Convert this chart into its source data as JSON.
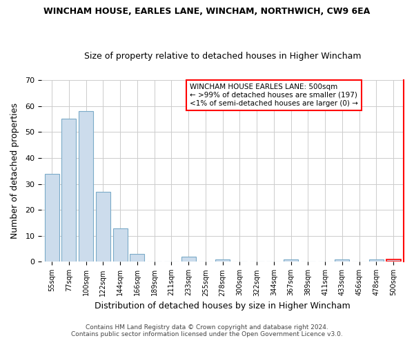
{
  "title": "WINCHAM HOUSE, EARLES LANE, WINCHAM, NORTHWICH, CW9 6EA",
  "subtitle": "Size of property relative to detached houses in Higher Wincham",
  "xlabel": "Distribution of detached houses by size in Higher Wincham",
  "ylabel": "Number of detached properties",
  "bar_labels": [
    "55sqm",
    "77sqm",
    "100sqm",
    "122sqm",
    "144sqm",
    "166sqm",
    "189sqm",
    "211sqm",
    "233sqm",
    "255sqm",
    "278sqm",
    "300sqm",
    "322sqm",
    "344sqm",
    "367sqm",
    "389sqm",
    "411sqm",
    "433sqm",
    "456sqm",
    "478sqm",
    "500sqm"
  ],
  "bar_values": [
    34,
    55,
    58,
    27,
    13,
    3,
    0,
    0,
    2,
    0,
    1,
    0,
    0,
    0,
    1,
    0,
    0,
    1,
    0,
    1,
    1
  ],
  "bar_color": "#ccdcec",
  "bar_edge_color": "#7aaac8",
  "highlight_bar_index": 20,
  "highlight_bar_edge_color": "red",
  "ylim": [
    0,
    70
  ],
  "yticks": [
    0,
    10,
    20,
    30,
    40,
    50,
    60,
    70
  ],
  "box_text_line1": "WINCHAM HOUSE EARLES LANE: 500sqm",
  "box_text_line2": "← >99% of detached houses are smaller (197)",
  "box_text_line3": "<1% of semi-detached houses are larger (0) →",
  "box_edge_color": "red",
  "footer_line1": "Contains HM Land Registry data © Crown copyright and database right 2024.",
  "footer_line2": "Contains public sector information licensed under the Open Government Licence v3.0.",
  "background_color": "#ffffff",
  "grid_color": "#cccccc",
  "right_border_color": "red"
}
